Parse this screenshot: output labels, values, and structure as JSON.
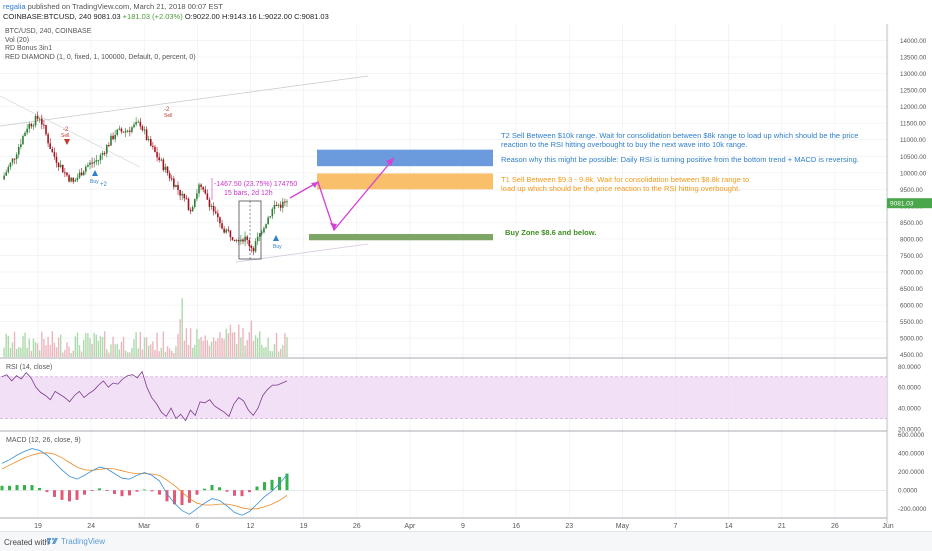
{
  "header": {
    "user": "regalia",
    "published": "published on TradingView.com, March 21, 2018 00:07 EST",
    "symbol": "COINBASE:BTCUSD, 240",
    "price": "9081.03",
    "change": "+181.03 (+2.03%)",
    "open": "O:9022.00",
    "high": "H:9143.16",
    "low": "L:9022.00",
    "close": "C:9081.03"
  },
  "indicators": [
    "BTC/USD, 240, COINBASE",
    "Vol (20)",
    "RD Bonus 3in1",
    "RED DIAMOND (1, 0, fixed, 1, 100000, Default, 0, percent, 0)"
  ],
  "notes": {
    "t2_line1": "T2 Sell Between $10k range.  Wait for consolidation between $8k range to load up which should be the price",
    "t2_line2": "reaction to the RSI hitting overbought to buy the next wave into 10k range.",
    "reason": "Reason why this might be possible: Daily RSI is turning positive from the bottom trend + MACD is reversing.",
    "t1_line1": "T1 Sell Between $9.3 - 9.8k. Wait for consolidation between $8.8k range to",
    "t1_line2": "load up which should be the price reaction to the RSI hitting overbought.",
    "buy": "Buy Zone $8.6 and below."
  },
  "measure": {
    "line1": "-1467.50 (23.75%) 174750",
    "line2": "15 bars, 2d 12h"
  },
  "signals": {
    "buy": "Buy",
    "sell": "Sell",
    "minus2": "-2",
    "plus2": "+2"
  },
  "panels": {
    "rsi": "RSI (14, close)",
    "macd": "MACD (12, 26, close, 9)"
  },
  "footer": {
    "created": "Created with",
    "brand": "TradingView"
  },
  "colors": {
    "up": "#2e7d32",
    "down": "#a3121f",
    "t2_zone": "#5b8fd9",
    "t1_zone": "#f8b85a",
    "buy_zone": "#6e9b55",
    "arrow": "#d542d5",
    "rsi_line": "#7b3a8f",
    "rsi_band": "#efd9f4",
    "macd": "#3b8fd6",
    "signal": "#f08a24",
    "hist_up": "#32b24a",
    "hist_down": "#e05a78"
  },
  "chart_data": [
    {
      "type": "candlestick",
      "title": "BTC/USD, 240, COINBASE",
      "x_ticks": [
        "19",
        "24",
        "Mar",
        "6",
        "12",
        "19",
        "26",
        "Apr",
        "9",
        "16",
        "23",
        "May",
        "7",
        "14",
        "21",
        "26",
        "Jun"
      ],
      "y_ticks": [
        4500,
        5000,
        5500,
        6000,
        6500,
        7000,
        7500,
        8000,
        8500,
        9000,
        9500,
        10000,
        10500,
        11000,
        11500,
        12000,
        12500,
        13000,
        13500,
        14000
      ],
      "y_tick_labels": [
        "4500.00",
        "5000.00",
        "5500.00",
        "6000.00",
        "6500.00",
        "7000.00",
        "7500.00",
        "8000.00",
        "8500.00",
        "9000.00",
        "9500.00",
        "10000.00",
        "10500.00",
        "11000.00",
        "11500.00",
        "12000.00",
        "12500.00",
        "13000.00",
        "13500.00",
        "14000.00"
      ],
      "ylim": [
        4400,
        14500
      ],
      "last_price": 9081.03,
      "anchors": [
        [
          0,
          9800
        ],
        [
          6,
          10500
        ],
        [
          12,
          11400
        ],
        [
          18,
          11700
        ],
        [
          24,
          10600
        ],
        [
          30,
          10000
        ],
        [
          34,
          9700
        ],
        [
          40,
          10200
        ],
        [
          46,
          10400
        ],
        [
          54,
          11200
        ],
        [
          60,
          11300
        ],
        [
          66,
          11500
        ],
        [
          70,
          10900
        ],
        [
          76,
          10300
        ],
        [
          80,
          9900
        ],
        [
          86,
          9300
        ],
        [
          90,
          8900
        ],
        [
          94,
          9600
        ],
        [
          100,
          9000
        ],
        [
          104,
          8400
        ],
        [
          110,
          8100
        ],
        [
          116,
          8000
        ],
        [
          120,
          7700
        ],
        [
          124,
          8300
        ],
        [
          130,
          9000
        ],
        [
          136,
          9081
        ]
      ],
      "zones": [
        {
          "name": "T2 Sell",
          "from": 10200,
          "to": 10700
        },
        {
          "name": "T1 Sell",
          "from": 9500,
          "to": 9980
        },
        {
          "name": "Buy Zone",
          "from": 7960,
          "to": 8150
        }
      ]
    },
    {
      "type": "line",
      "title": "RSI (14, close)",
      "y_ticks": [
        20,
        40,
        60,
        80
      ],
      "y_tick_labels": [
        "20.0000",
        "40.0000",
        "60.0000",
        "80.0000"
      ],
      "ylim": [
        18,
        88
      ],
      "bands": [
        30,
        70
      ],
      "values": [
        70,
        72,
        66,
        71,
        68,
        74,
        69,
        60,
        55,
        52,
        48,
        56,
        53,
        50,
        46,
        52,
        56,
        50,
        54,
        57,
        62,
        66,
        60,
        64,
        63,
        68,
        71,
        72,
        69,
        75,
        60,
        50,
        44,
        36,
        32,
        40,
        30,
        34,
        28,
        38,
        33,
        46,
        45,
        48,
        42,
        39,
        36,
        32,
        44,
        50,
        47,
        38,
        33,
        40,
        52,
        58,
        62,
        62,
        64,
        66
      ]
    },
    {
      "type": "line",
      "title": "MACD (12, 26, close, 9)",
      "y_ticks": [
        -200,
        0,
        200,
        400,
        600
      ],
      "y_tick_labels": [
        "-200.0000",
        "0.0000",
        "200.0000",
        "400.0000",
        "600.0000"
      ],
      "ylim": [
        -300,
        640
      ],
      "series": [
        {
          "name": "MACD",
          "values": [
            290,
            330,
            380,
            420,
            450,
            430,
            380,
            300,
            220,
            150,
            120,
            160,
            210,
            250,
            230,
            180,
            130,
            120,
            160,
            190,
            160,
            100,
            -40,
            -140,
            -220,
            -260,
            -200,
            -140,
            -90,
            -110,
            -170,
            -240,
            -270,
            -230,
            -150,
            -70,
            -10,
            70,
            170
          ]
        },
        {
          "name": "Signal",
          "values": [
            230,
            270,
            310,
            350,
            380,
            400,
            405,
            390,
            350,
            300,
            250,
            220,
            215,
            225,
            235,
            230,
            210,
            190,
            180,
            180,
            175,
            160,
            110,
            50,
            -20,
            -90,
            -140,
            -160,
            -160,
            -150,
            -150,
            -165,
            -190,
            -205,
            -200,
            -180,
            -150,
            -110,
            -55
          ]
        }
      ]
    }
  ]
}
